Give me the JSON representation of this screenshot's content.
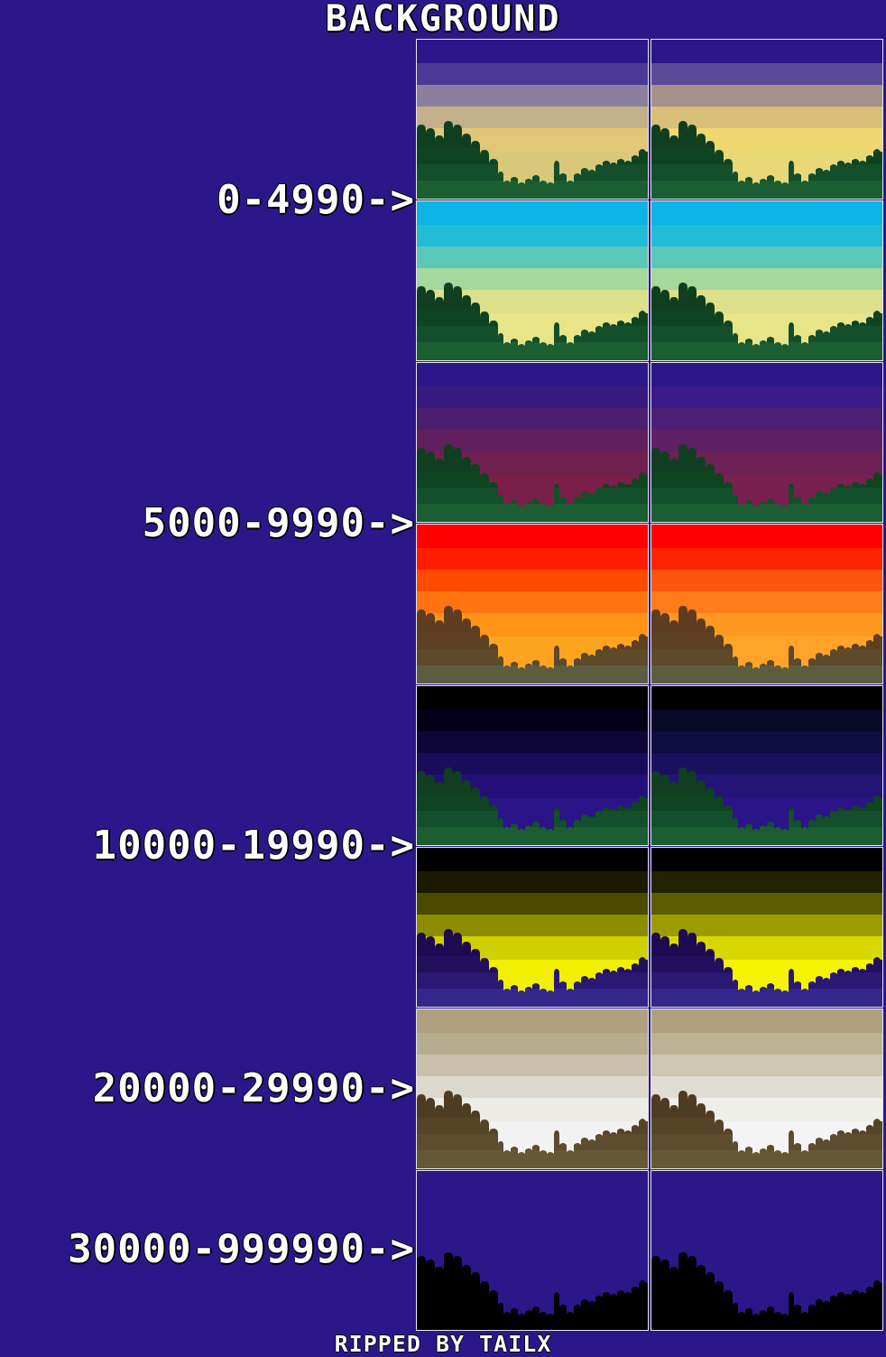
{
  "title": "BACKGROUND",
  "footer": "RIPPED BY TAILX",
  "ranges": [
    {
      "label": "0-4990->"
    },
    {
      "label": "5000-9990->"
    },
    {
      "label": "10000-19990->"
    },
    {
      "label": "20000-29990->"
    },
    {
      "label": "30000-999990->"
    }
  ],
  "panels": [
    {
      "sky": [
        "#2c178a",
        "#4a3a96",
        "#8c7e9e",
        "#c2b08a",
        "#e0c878",
        "#d8c87a"
      ],
      "land": [
        "#0f3e20",
        "#0f4420",
        "#134f2a",
        "#1a5e32"
      ]
    },
    {
      "sky": [
        "#2c178a",
        "#5a4a98",
        "#a4928a",
        "#d8c07a",
        "#f0d870",
        "#e8d878"
      ],
      "land": [
        "#0f3e20",
        "#0f4420",
        "#134f2a",
        "#1a5e32"
      ]
    },
    {
      "sky": [
        "#0cb4e6",
        "#22bcd6",
        "#5ac8b8",
        "#a4d89c",
        "#dce08a",
        "#e8e488"
      ],
      "land": [
        "#0f3e20",
        "#0f4420",
        "#134f2a",
        "#1a5e32"
      ]
    },
    {
      "sky": [
        "#0cb4e6",
        "#22bcd6",
        "#5ac8b8",
        "#a4d89c",
        "#dce08a",
        "#e8e488"
      ],
      "land": [
        "#0f3e20",
        "#0f4420",
        "#134f2a",
        "#1a5e32"
      ]
    },
    {
      "sky": [
        "#2c178a",
        "#361a80",
        "#4c1e70",
        "#621f5e",
        "#70204e",
        "#7a2048"
      ],
      "land": [
        "#0f3e20",
        "#0f4420",
        "#134f2a",
        "#1a5e32"
      ]
    },
    {
      "sky": [
        "#2c178a",
        "#3a1a86",
        "#4c1e74",
        "#5e1f64",
        "#6c2054",
        "#782050"
      ],
      "land": [
        "#0f3e20",
        "#0f4420",
        "#134f2a",
        "#1a5e32"
      ]
    },
    {
      "sky": [
        "#ff0000",
        "#ff1c00",
        "#ff4a00",
        "#ff7410",
        "#ff9418",
        "#ffa420"
      ],
      "land": [
        "#5e3c20",
        "#5e4022",
        "#5c4a2a",
        "#5c5c40"
      ]
    },
    {
      "sky": [
        "#ff0000",
        "#ff2400",
        "#ff5410",
        "#ff7c18",
        "#ff9820",
        "#ffa428"
      ],
      "land": [
        "#5e3c20",
        "#5e4022",
        "#5c4a2a",
        "#5c5c40"
      ]
    },
    {
      "sky": [
        "#000000",
        "#04001a",
        "#0e0638",
        "#1a0c5c",
        "#240f7a",
        "#2a1488"
      ],
      "land": [
        "#0f3e20",
        "#0f4420",
        "#134f2a",
        "#1a5e32"
      ]
    },
    {
      "sky": [
        "#000000",
        "#080828",
        "#0e0c40",
        "#1a1260",
        "#241478",
        "#2a1488"
      ],
      "land": [
        "#0f3e20",
        "#0f4420",
        "#134f2a",
        "#1a5e32"
      ]
    },
    {
      "sky": [
        "#000000",
        "#1a1a00",
        "#4a4a00",
        "#8c8c00",
        "#d0d000",
        "#f0f000"
      ],
      "land": [
        "#1e0a50",
        "#22105e",
        "#2a1874",
        "#34268a"
      ]
    },
    {
      "sky": [
        "#000000",
        "#222200",
        "#5c5c00",
        "#9c9c00",
        "#d8d800",
        "#f4f400"
      ],
      "land": [
        "#1e0a50",
        "#22105e",
        "#2a1874",
        "#34268a"
      ]
    },
    {
      "sky": [
        "#b0a080",
        "#b8ac8e",
        "#c8c0aa",
        "#dcd8cc",
        "#ecebe6",
        "#f2f2f2"
      ],
      "land": [
        "#4e3c22",
        "#564428",
        "#5e4c2e",
        "#665834"
      ]
    },
    {
      "sky": [
        "#b0a080",
        "#bcb294",
        "#ccc6b2",
        "#e0ded4",
        "#efefea",
        "#f4f4f4"
      ],
      "land": [
        "#4e3c22",
        "#564428",
        "#5e4c2e",
        "#665834"
      ]
    },
    {
      "sky": [
        "#2c178a",
        "#2c178a",
        "#2c178a",
        "#2c178a",
        "#2c178a",
        "#2c178a"
      ],
      "land": [
        "#000000",
        "#000000",
        "#000000",
        "#000000"
      ]
    },
    {
      "sky": [
        "#2c178a",
        "#2c178a",
        "#2c178a",
        "#2c178a",
        "#2c178a",
        "#2c178a"
      ],
      "land": [
        "#000000",
        "#000000",
        "#000000",
        "#000000"
      ]
    }
  ]
}
